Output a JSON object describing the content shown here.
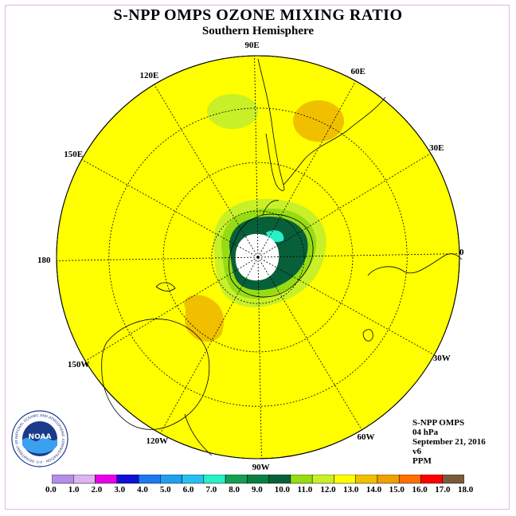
{
  "title": "S-NPP OMPS OZONE MIXING RATIO",
  "subtitle": "Southern Hemisphere",
  "longitude_labels": [
    {
      "text": "90W",
      "lon": -90
    },
    {
      "text": "60W",
      "lon": -60
    },
    {
      "text": "120W",
      "lon": -120
    },
    {
      "text": "30W",
      "lon": -30
    },
    {
      "text": "150W",
      "lon": -150
    },
    {
      "text": "0",
      "lon": 0
    },
    {
      "text": "180",
      "lon": 180
    },
    {
      "text": "30E",
      "lon": 30
    },
    {
      "text": "150E",
      "lon": 150
    },
    {
      "text": "60E",
      "lon": 60
    },
    {
      "text": "120E",
      "lon": 120
    },
    {
      "text": "90E",
      "lon": 90
    }
  ],
  "info": {
    "instrument": "S-NPP OMPS",
    "level": "04 hPa",
    "date": "September 21, 2016",
    "version": "v6",
    "units": "PPM"
  },
  "colorbar": {
    "ticks": [
      "0.0",
      "1.0",
      "2.0",
      "3.0",
      "4.0",
      "5.0",
      "6.0",
      "7.0",
      "8.0",
      "9.0",
      "10.0",
      "11.0",
      "12.0",
      "13.0",
      "14.0",
      "15.0",
      "16.0",
      "17.0",
      "18.0"
    ],
    "colors": [
      "#b58ee8",
      "#dcb4f0",
      "#e800e8",
      "#1010d8",
      "#1e78f0",
      "#1ea0f0",
      "#28c0f0",
      "#28f0c8",
      "#14a050",
      "#0a8040",
      "#08603a",
      "#96dc14",
      "#c8f028",
      "#ffff00",
      "#f0c000",
      "#f0a000",
      "#ff7000",
      "#ff0000",
      "#7a5a3a"
    ]
  },
  "logo": {
    "text": "NOAA",
    "ring_text": "NATIONAL OCEANIC AND ATMOSPHERIC ADMINISTRATION · U.S. DEPARTMENT OF COMMERCE"
  },
  "colors": {
    "background_field": "#ffff00",
    "polar_no_data": "#ffffff"
  }
}
